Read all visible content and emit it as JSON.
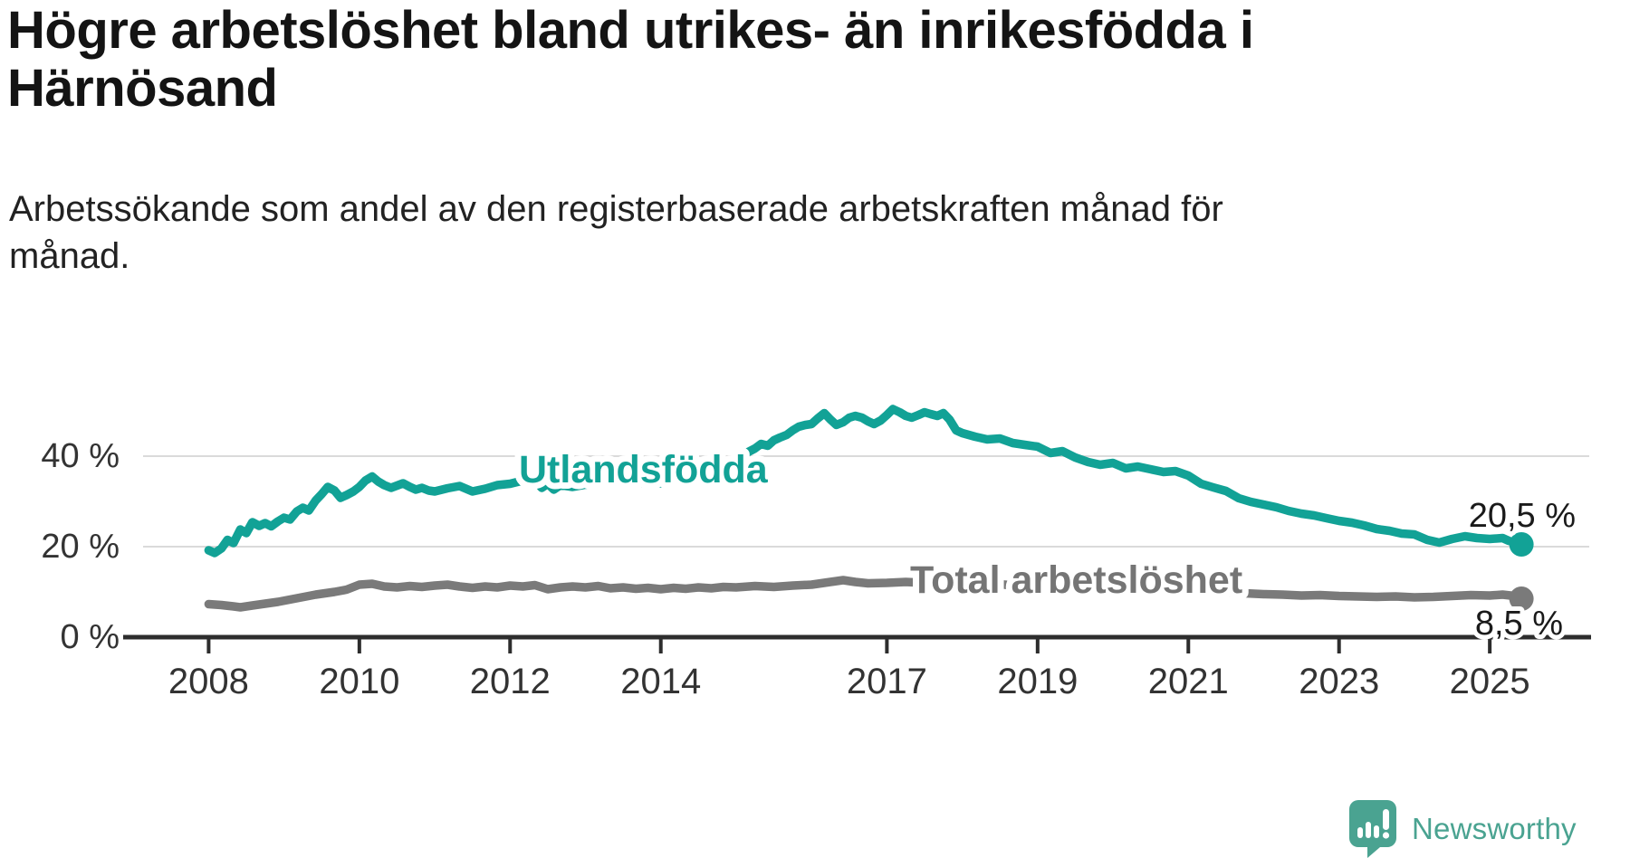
{
  "header": {
    "title_lines": [
      "Högre arbetslöshet bland utrikes- än inrikesfödda i",
      "Härnösand"
    ],
    "subtitle_lines": [
      "Arbetssökande som andel av den registerbaserade arbetskraften månad för",
      "månad."
    ]
  },
  "colors": {
    "foreign_born_line": "#12A296",
    "total_line": "#7A7A7A",
    "total_label": "#757575",
    "axis": "#2D2D2D",
    "gridline": "#DADADA",
    "tick_label": "#333333",
    "annotation_text": "#1A1A1A",
    "logo_teal": "#4AA391",
    "background": "#FFFFFF"
  },
  "chart_data": {
    "type": "line",
    "title": "",
    "xlabel": "",
    "ylabel": "",
    "grid": "horizontal-only",
    "xlim": [
      2007.13,
      2026.32
    ],
    "ylim": [
      0,
      50
    ],
    "x_ticks": [
      {
        "value": 2008,
        "label": "2008"
      },
      {
        "value": 2010,
        "label": "2010"
      },
      {
        "value": 2012,
        "label": "2012"
      },
      {
        "value": 2014,
        "label": "2014"
      },
      {
        "value": 2017,
        "label": "2017"
      },
      {
        "value": 2019,
        "label": "2019"
      },
      {
        "value": 2021,
        "label": "2021"
      },
      {
        "value": 2023,
        "label": "2023"
      },
      {
        "value": 2025,
        "label": "2025"
      }
    ],
    "y_ticks": [
      {
        "value": 0,
        "label": "0 %"
      },
      {
        "value": 20,
        "label": "20 %"
      },
      {
        "value": 40,
        "label": "40 %"
      }
    ],
    "series": [
      {
        "name": "Utlandsfödda",
        "color": "#12A296",
        "label_color": "#12A296",
        "end_label": "20,5 %",
        "end_value": 20.5,
        "points": [
          [
            2008.0,
            19.2
          ],
          [
            2008.08,
            18.6
          ],
          [
            2008.17,
            19.6
          ],
          [
            2008.25,
            21.5
          ],
          [
            2008.33,
            20.8
          ],
          [
            2008.42,
            23.8
          ],
          [
            2008.5,
            23.0
          ],
          [
            2008.58,
            25.4
          ],
          [
            2008.67,
            24.6
          ],
          [
            2008.75,
            25.2
          ],
          [
            2008.83,
            24.5
          ],
          [
            2008.92,
            25.6
          ],
          [
            2009.0,
            26.4
          ],
          [
            2009.08,
            26.0
          ],
          [
            2009.17,
            27.8
          ],
          [
            2009.25,
            28.6
          ],
          [
            2009.33,
            28.0
          ],
          [
            2009.42,
            30.2
          ],
          [
            2009.5,
            31.6
          ],
          [
            2009.58,
            33.2
          ],
          [
            2009.67,
            32.4
          ],
          [
            2009.75,
            30.8
          ],
          [
            2009.83,
            31.4
          ],
          [
            2009.92,
            32.2
          ],
          [
            2010.0,
            33.2
          ],
          [
            2010.08,
            34.6
          ],
          [
            2010.17,
            35.5
          ],
          [
            2010.25,
            34.4
          ],
          [
            2010.33,
            33.6
          ],
          [
            2010.42,
            33.0
          ],
          [
            2010.5,
            33.5
          ],
          [
            2010.58,
            34.0
          ],
          [
            2010.67,
            33.2
          ],
          [
            2010.75,
            32.6
          ],
          [
            2010.83,
            33.0
          ],
          [
            2010.92,
            32.4
          ],
          [
            2011.0,
            32.2
          ],
          [
            2011.17,
            32.9
          ],
          [
            2011.33,
            33.4
          ],
          [
            2011.5,
            32.2
          ],
          [
            2011.67,
            32.8
          ],
          [
            2011.83,
            33.6
          ],
          [
            2012.0,
            33.9
          ],
          [
            2012.17,
            34.6
          ],
          [
            2012.33,
            34.8
          ],
          [
            2012.42,
            33.0
          ],
          [
            2012.5,
            33.9
          ],
          [
            2012.58,
            32.6
          ],
          [
            2012.67,
            33.6
          ],
          [
            2012.83,
            33.2
          ],
          [
            2013.0,
            33.7
          ],
          [
            2013.17,
            34.1
          ],
          [
            2013.33,
            35.6
          ],
          [
            2013.42,
            34.4
          ],
          [
            2013.5,
            34.9
          ],
          [
            2013.67,
            33.9
          ],
          [
            2013.83,
            34.3
          ],
          [
            2014.0,
            34.0
          ],
          [
            2014.17,
            34.7
          ],
          [
            2014.33,
            34.3
          ],
          [
            2014.5,
            35.1
          ],
          [
            2014.67,
            36.5
          ],
          [
            2014.83,
            38.1
          ],
          [
            2015.0,
            39.1
          ],
          [
            2015.08,
            40.2
          ],
          [
            2015.17,
            41.0
          ],
          [
            2015.25,
            41.7
          ],
          [
            2015.33,
            42.7
          ],
          [
            2015.42,
            42.3
          ],
          [
            2015.5,
            43.5
          ],
          [
            2015.58,
            44.1
          ],
          [
            2015.67,
            44.7
          ],
          [
            2015.75,
            45.7
          ],
          [
            2015.83,
            46.5
          ],
          [
            2015.92,
            46.9
          ],
          [
            2016.0,
            47.1
          ],
          [
            2016.08,
            48.3
          ],
          [
            2016.17,
            49.5
          ],
          [
            2016.25,
            48.1
          ],
          [
            2016.33,
            46.9
          ],
          [
            2016.42,
            47.5
          ],
          [
            2016.5,
            48.5
          ],
          [
            2016.58,
            48.9
          ],
          [
            2016.67,
            48.5
          ],
          [
            2016.75,
            47.7
          ],
          [
            2016.83,
            47.1
          ],
          [
            2016.92,
            47.9
          ],
          [
            2017.0,
            49.1
          ],
          [
            2017.08,
            50.4
          ],
          [
            2017.17,
            49.7
          ],
          [
            2017.25,
            48.9
          ],
          [
            2017.33,
            48.5
          ],
          [
            2017.42,
            49.1
          ],
          [
            2017.5,
            49.7
          ],
          [
            2017.58,
            49.3
          ],
          [
            2017.67,
            48.9
          ],
          [
            2017.75,
            49.5
          ],
          [
            2017.83,
            48.1
          ],
          [
            2017.92,
            45.7
          ],
          [
            2018.0,
            45.1
          ],
          [
            2018.17,
            44.3
          ],
          [
            2018.33,
            43.7
          ],
          [
            2018.5,
            43.9
          ],
          [
            2018.67,
            42.9
          ],
          [
            2018.83,
            42.5
          ],
          [
            2019.0,
            42.1
          ],
          [
            2019.17,
            40.7
          ],
          [
            2019.33,
            41.1
          ],
          [
            2019.5,
            39.7
          ],
          [
            2019.67,
            38.7
          ],
          [
            2019.83,
            38.1
          ],
          [
            2020.0,
            38.5
          ],
          [
            2020.17,
            37.3
          ],
          [
            2020.33,
            37.7
          ],
          [
            2020.5,
            37.1
          ],
          [
            2020.67,
            36.5
          ],
          [
            2020.83,
            36.7
          ],
          [
            2021.0,
            35.7
          ],
          [
            2021.17,
            33.9
          ],
          [
            2021.33,
            33.1
          ],
          [
            2021.5,
            32.3
          ],
          [
            2021.67,
            30.7
          ],
          [
            2021.83,
            29.9
          ],
          [
            2022.0,
            29.3
          ],
          [
            2022.17,
            28.7
          ],
          [
            2022.33,
            27.9
          ],
          [
            2022.5,
            27.3
          ],
          [
            2022.67,
            26.9
          ],
          [
            2022.83,
            26.3
          ],
          [
            2023.0,
            25.7
          ],
          [
            2023.17,
            25.3
          ],
          [
            2023.33,
            24.7
          ],
          [
            2023.5,
            23.9
          ],
          [
            2023.67,
            23.5
          ],
          [
            2023.83,
            22.9
          ],
          [
            2024.0,
            22.7
          ],
          [
            2024.17,
            21.5
          ],
          [
            2024.33,
            20.9
          ],
          [
            2024.5,
            21.7
          ],
          [
            2024.67,
            22.3
          ],
          [
            2024.83,
            21.9
          ],
          [
            2025.0,
            21.7
          ],
          [
            2025.17,
            21.9
          ],
          [
            2025.25,
            21.3
          ],
          [
            2025.33,
            20.9
          ],
          [
            2025.42,
            20.5
          ]
        ]
      },
      {
        "name": "Total arbetslöshet",
        "color": "#7A7A7A",
        "label_color": "#757575",
        "end_label": "8,5 %",
        "end_value": 8.5,
        "points": [
          [
            2008.0,
            7.3
          ],
          [
            2008.17,
            7.1
          ],
          [
            2008.33,
            6.8
          ],
          [
            2008.42,
            6.6
          ],
          [
            2008.58,
            7.0
          ],
          [
            2008.75,
            7.4
          ],
          [
            2008.92,
            7.8
          ],
          [
            2009.17,
            8.6
          ],
          [
            2009.42,
            9.4
          ],
          [
            2009.67,
            10.0
          ],
          [
            2009.83,
            10.5
          ],
          [
            2010.0,
            11.6
          ],
          [
            2010.17,
            11.8
          ],
          [
            2010.33,
            11.2
          ],
          [
            2010.5,
            11.0
          ],
          [
            2010.67,
            11.3
          ],
          [
            2010.83,
            11.1
          ],
          [
            2011.0,
            11.4
          ],
          [
            2011.17,
            11.6
          ],
          [
            2011.33,
            11.2
          ],
          [
            2011.5,
            10.9
          ],
          [
            2011.67,
            11.2
          ],
          [
            2011.83,
            11.0
          ],
          [
            2012.0,
            11.4
          ],
          [
            2012.17,
            11.2
          ],
          [
            2012.33,
            11.5
          ],
          [
            2012.5,
            10.6
          ],
          [
            2012.67,
            11.0
          ],
          [
            2012.83,
            11.2
          ],
          [
            2013.0,
            11.0
          ],
          [
            2013.17,
            11.3
          ],
          [
            2013.33,
            10.8
          ],
          [
            2013.5,
            11.0
          ],
          [
            2013.67,
            10.7
          ],
          [
            2013.83,
            10.9
          ],
          [
            2014.0,
            10.6
          ],
          [
            2014.17,
            10.9
          ],
          [
            2014.33,
            10.7
          ],
          [
            2014.5,
            11.0
          ],
          [
            2014.67,
            10.8
          ],
          [
            2014.83,
            11.1
          ],
          [
            2015.0,
            11.0
          ],
          [
            2015.25,
            11.3
          ],
          [
            2015.5,
            11.1
          ],
          [
            2015.75,
            11.4
          ],
          [
            2016.0,
            11.6
          ],
          [
            2016.25,
            12.2
          ],
          [
            2016.42,
            12.6
          ],
          [
            2016.58,
            12.2
          ],
          [
            2016.75,
            11.9
          ],
          [
            2017.0,
            12.0
          ],
          [
            2017.25,
            12.2
          ],
          [
            2017.5,
            12.0
          ],
          [
            2017.75,
            12.1
          ],
          [
            2018.0,
            11.8
          ],
          [
            2018.25,
            11.5
          ],
          [
            2018.5,
            11.7
          ],
          [
            2018.75,
            11.3
          ],
          [
            2019.0,
            11.2
          ],
          [
            2019.25,
            10.9
          ],
          [
            2019.5,
            10.7
          ],
          [
            2019.75,
            10.5
          ],
          [
            2020.0,
            10.4
          ],
          [
            2020.25,
            10.8
          ],
          [
            2020.5,
            11.2
          ],
          [
            2020.75,
            11.0
          ],
          [
            2021.0,
            10.7
          ],
          [
            2021.25,
            10.3
          ],
          [
            2021.5,
            10.0
          ],
          [
            2021.75,
            9.7
          ],
          [
            2022.0,
            9.5
          ],
          [
            2022.25,
            9.4
          ],
          [
            2022.5,
            9.2
          ],
          [
            2022.75,
            9.3
          ],
          [
            2023.0,
            9.1
          ],
          [
            2023.25,
            9.0
          ],
          [
            2023.5,
            8.9
          ],
          [
            2023.75,
            9.0
          ],
          [
            2024.0,
            8.8
          ],
          [
            2024.25,
            8.9
          ],
          [
            2024.5,
            9.1
          ],
          [
            2024.75,
            9.3
          ],
          [
            2025.0,
            9.2
          ],
          [
            2025.17,
            9.4
          ],
          [
            2025.33,
            9.1
          ],
          [
            2025.42,
            8.5
          ]
        ]
      }
    ]
  },
  "logo": {
    "brand": "Newsworthy",
    "icon": "newsworthy-speech-bubble-chart-icon"
  }
}
